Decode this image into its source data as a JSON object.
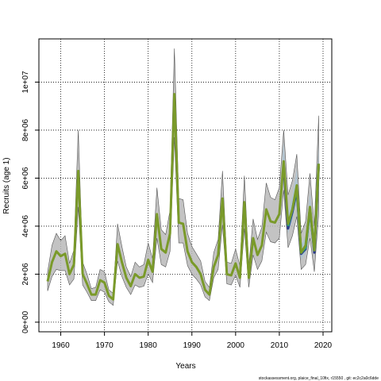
{
  "chart_data": {
    "type": "line",
    "xlabel": "Years",
    "ylabel": "Recruits (age 1)",
    "xlim": [
      1955,
      2022
    ],
    "ylim": [
      -400000,
      11800000
    ],
    "x_ticks": [
      1960,
      1970,
      1980,
      1990,
      2000,
      2010,
      2020
    ],
    "x_tick_labels": [
      "1960",
      "1970",
      "1980",
      "1990",
      "2000",
      "2010",
      "2020"
    ],
    "y_ticks": [
      0,
      2000000,
      4000000,
      6000000,
      8000000,
      10000000
    ],
    "y_tick_labels": [
      "0e+00",
      "2e+06",
      "4e+06",
      "6e+06",
      "8e+06",
      "1e+07"
    ],
    "grid": true,
    "footer": "stockassessment.org, plaice_final_10fix, r15550 , git: ec2c2a0c6dde",
    "x": [
      1957,
      1958,
      1959,
      1960,
      1961,
      1962,
      1963,
      1964,
      1965,
      1966,
      1967,
      1968,
      1969,
      1970,
      1971,
      1972,
      1973,
      1974,
      1975,
      1976,
      1977,
      1978,
      1979,
      1980,
      1981,
      1982,
      1983,
      1984,
      1985,
      1986,
      1987,
      1988,
      1989,
      1990,
      1991,
      1992,
      1993,
      1994,
      1995,
      1996,
      1997,
      1998,
      1999,
      2000,
      2001,
      2002,
      2003,
      2004,
      2005,
      2006,
      2007,
      2008,
      2009,
      2010,
      2011,
      2012,
      2013,
      2014,
      2015,
      2016,
      2017,
      2018,
      2019
    ],
    "series": [
      {
        "color": "#7a9a2a",
        "values": [
          1700000,
          2500000,
          2950000,
          2750000,
          2850000,
          2000000,
          2400000,
          6300000,
          2000000,
          1600000,
          1150000,
          1150000,
          1750000,
          1650000,
          1100000,
          950000,
          3250000,
          2500000,
          1850000,
          1500000,
          2000000,
          1850000,
          1900000,
          2600000,
          2100000,
          4500000,
          3050000,
          2900000,
          3700000,
          9500000,
          4150000,
          4100000,
          2950000,
          2500000,
          2300000,
          2000000,
          1350000,
          1150000,
          2300000,
          2800000,
          5150000,
          2000000,
          1950000,
          2450000,
          1850000,
          5000000,
          1850000,
          3500000,
          2800000,
          3200000,
          4700000,
          4200000,
          4150000,
          4500000,
          6700000,
          4100000,
          4700000,
          5700000,
          2900000,
          3200000,
          4800000,
          3000000,
          6600000
        ],
        "lower": [
          1300000,
          1900000,
          2200000,
          2150000,
          2150000,
          1550000,
          1800000,
          4800000,
          1550000,
          1250000,
          900000,
          900000,
          1350000,
          1250000,
          850000,
          700000,
          2550000,
          1900000,
          1450000,
          1150000,
          1550000,
          1450000,
          1500000,
          2000000,
          1650000,
          3500000,
          2400000,
          2300000,
          2950000,
          7700000,
          3300000,
          3300000,
          2350000,
          2000000,
          1800000,
          1550000,
          1050000,
          900000,
          1850000,
          2200000,
          4050000,
          1600000,
          1550000,
          1950000,
          1450000,
          3900000,
          1450000,
          2800000,
          2200000,
          2550000,
          3750000,
          3350000,
          3300000,
          3500000,
          5500000,
          3100000,
          3600000,
          4400000,
          2200000,
          2400000,
          3500000,
          2100000,
          4500000
        ],
        "upper": [
          2100000,
          3200000,
          3700000,
          3400000,
          3600000,
          2450000,
          3000000,
          8000000,
          2500000,
          2000000,
          1400000,
          1450000,
          2200000,
          2100000,
          1350000,
          1200000,
          4100000,
          3150000,
          2300000,
          1900000,
          2500000,
          2300000,
          2400000,
          3300000,
          2650000,
          5600000,
          3850000,
          3650000,
          4650000,
          11400000,
          5150000,
          5100000,
          3700000,
          3150000,
          2850000,
          2550000,
          1700000,
          1450000,
          2900000,
          3450000,
          6300000,
          2500000,
          2450000,
          3050000,
          2350000,
          6100000,
          2350000,
          4300000,
          3450000,
          3950000,
          5800000,
          5200000,
          5100000,
          5600000,
          8000000,
          5300000,
          5900000,
          7000000,
          3700000,
          4200000,
          6200000,
          4000000,
          8600000
        ]
      },
      {
        "color": "#2aa07a",
        "x": [
          2012,
          2013,
          2014,
          2015,
          2016,
          2017,
          2018,
          2019
        ],
        "values": [
          4000000,
          4700000,
          5600000,
          2900000,
          3100000,
          4700000,
          3000000,
          6600000
        ]
      },
      {
        "color": "#2a3a8a",
        "x": [
          2011,
          2012,
          2013,
          2014,
          2015,
          2016,
          2017,
          2018,
          2019
        ],
        "values": [
          6500000,
          3900000,
          4600000,
          5500000,
          2850000,
          3050000,
          4750000,
          2900000,
          6500000
        ]
      },
      {
        "color": "#111111",
        "dash": true,
        "x": [
          2018,
          2019
        ],
        "values": [
          3000000,
          6600000
        ]
      }
    ]
  }
}
